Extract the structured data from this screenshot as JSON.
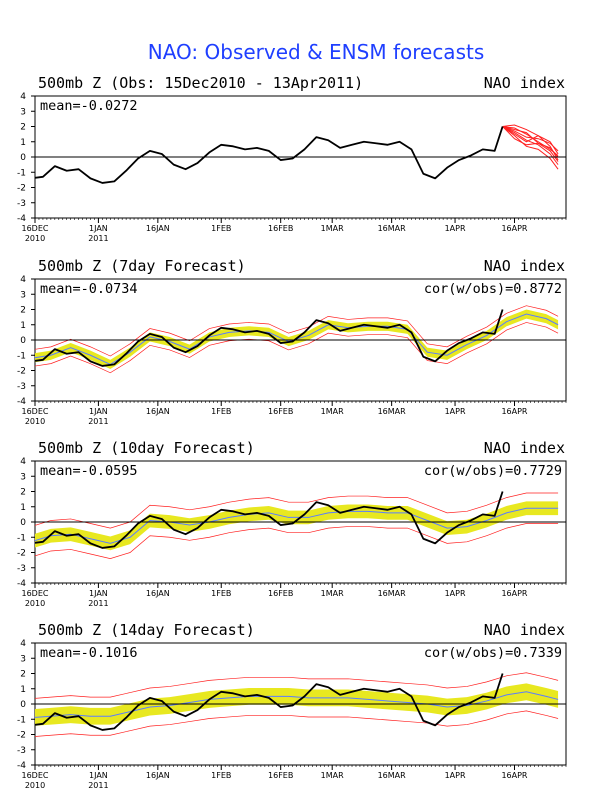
{
  "figure_title": "NAO: Observed & ENSM forecasts",
  "colors": {
    "title": "#1f3fff",
    "observed": "#000000",
    "member": "#ff2020",
    "ens_mean": "#5a7dff",
    "band": "#e8e820"
  },
  "chart_data": [
    {
      "type": "line",
      "title": "500mb Z (Obs: 15Dec2010 - 13Apr2011)",
      "right_title": "NAO index",
      "mean_label": "mean=-0.0272",
      "cor_label": "",
      "xlim": [
        "2010-12-16",
        "2011-04-29"
      ],
      "ylim": [
        -4,
        4
      ],
      "yticks": [
        -4,
        -3,
        -2,
        -1,
        0,
        1,
        2,
        3,
        4
      ],
      "xticks": [
        {
          "date": "2010-12-16",
          "line1": "16DEC",
          "line2": "2010"
        },
        {
          "date": "2011-01-01",
          "line1": "1JAN",
          "line2": "2011"
        },
        {
          "date": "2011-01-16",
          "line1": "16JAN",
          "line2": ""
        },
        {
          "date": "2011-02-01",
          "line1": "1FEB",
          "line2": ""
        },
        {
          "date": "2011-02-16",
          "line1": "16FEB",
          "line2": ""
        },
        {
          "date": "2011-03-01",
          "line1": "1MAR",
          "line2": ""
        },
        {
          "date": "2011-03-16",
          "line1": "16MAR",
          "line2": ""
        },
        {
          "date": "2011-04-01",
          "line1": "1APR",
          "line2": ""
        },
        {
          "date": "2011-04-16",
          "line1": "16APR",
          "line2": ""
        }
      ],
      "show_members": true,
      "show_band": false,
      "show_mean": false
    },
    {
      "type": "line",
      "title": "500mb Z (7day Forecast)",
      "right_title": "NAO index",
      "mean_label": "mean=-0.0734",
      "cor_label": "cor(w/obs)=0.8772",
      "xlim": [
        "2010-12-16",
        "2011-04-29"
      ],
      "ylim": [
        -4,
        4
      ],
      "yticks": [
        -4,
        -3,
        -2,
        -1,
        0,
        1,
        2,
        3,
        4
      ],
      "xticks": [
        {
          "date": "2010-12-16",
          "line1": "16DEC",
          "line2": "2010"
        },
        {
          "date": "2011-01-01",
          "line1": "1JAN",
          "line2": "2011"
        },
        {
          "date": "2011-01-16",
          "line1": "16JAN",
          "line2": ""
        },
        {
          "date": "2011-02-01",
          "line1": "1FEB",
          "line2": ""
        },
        {
          "date": "2011-02-16",
          "line1": "16FEB",
          "line2": ""
        },
        {
          "date": "2011-03-01",
          "line1": "1MAR",
          "line2": ""
        },
        {
          "date": "2011-03-16",
          "line1": "16MAR",
          "line2": ""
        },
        {
          "date": "2011-04-01",
          "line1": "1APR",
          "line2": ""
        },
        {
          "date": "2011-04-16",
          "line1": "16APR",
          "line2": ""
        }
      ],
      "show_members": false,
      "show_band": true,
      "show_mean": true
    },
    {
      "type": "line",
      "title": "500mb Z (10day Forecast)",
      "right_title": "NAO index",
      "mean_label": "mean=-0.0595",
      "cor_label": "cor(w/obs)=0.7729",
      "xlim": [
        "2010-12-16",
        "2011-04-29"
      ],
      "ylim": [
        -4,
        4
      ],
      "yticks": [
        -4,
        -3,
        -2,
        -1,
        0,
        1,
        2,
        3,
        4
      ],
      "xticks": [
        {
          "date": "2010-12-16",
          "line1": "16DEC",
          "line2": "2010"
        },
        {
          "date": "2011-01-01",
          "line1": "1JAN",
          "line2": "2011"
        },
        {
          "date": "2011-01-16",
          "line1": "16JAN",
          "line2": ""
        },
        {
          "date": "2011-02-01",
          "line1": "1FEB",
          "line2": ""
        },
        {
          "date": "2011-02-16",
          "line1": "16FEB",
          "line2": ""
        },
        {
          "date": "2011-03-01",
          "line1": "1MAR",
          "line2": ""
        },
        {
          "date": "2011-03-16",
          "line1": "16MAR",
          "line2": ""
        },
        {
          "date": "2011-04-01",
          "line1": "1APR",
          "line2": ""
        },
        {
          "date": "2011-04-16",
          "line1": "16APR",
          "line2": ""
        }
      ],
      "show_members": false,
      "show_band": true,
      "show_mean": true
    },
    {
      "type": "line",
      "title": "500mb Z (14day Forecast)",
      "right_title": "NAO index",
      "mean_label": "mean=-0.1016",
      "cor_label": "cor(w/obs)=0.7339",
      "xlim": [
        "2010-12-16",
        "2011-04-29"
      ],
      "ylim": [
        -4,
        4
      ],
      "yticks": [
        -4,
        -3,
        -2,
        -1,
        0,
        1,
        2,
        3,
        4
      ],
      "xticks": [
        {
          "date": "2010-12-16",
          "line1": "16DEC",
          "line2": "2010"
        },
        {
          "date": "2011-01-01",
          "line1": "1JAN",
          "line2": "2011"
        },
        {
          "date": "2011-01-16",
          "line1": "16JAN",
          "line2": ""
        },
        {
          "date": "2011-02-01",
          "line1": "1FEB",
          "line2": ""
        },
        {
          "date": "2011-02-16",
          "line1": "16FEB",
          "line2": ""
        },
        {
          "date": "2011-03-01",
          "line1": "1MAR",
          "line2": ""
        },
        {
          "date": "2011-03-16",
          "line1": "16MAR",
          "line2": ""
        },
        {
          "date": "2011-04-01",
          "line1": "1APR",
          "line2": ""
        },
        {
          "date": "2011-04-16",
          "line1": "16APR",
          "line2": ""
        }
      ],
      "show_members": false,
      "show_band": true,
      "show_mean": true
    }
  ],
  "observed": {
    "dates": [
      "2010-12-15",
      "2010-12-18",
      "2010-12-21",
      "2010-12-24",
      "2010-12-27",
      "2010-12-30",
      "2011-01-02",
      "2011-01-05",
      "2011-01-08",
      "2011-01-11",
      "2011-01-14",
      "2011-01-17",
      "2011-01-20",
      "2011-01-23",
      "2011-01-26",
      "2011-01-29",
      "2011-02-01",
      "2011-02-04",
      "2011-02-07",
      "2011-02-10",
      "2011-02-13",
      "2011-02-16",
      "2011-02-19",
      "2011-02-22",
      "2011-02-25",
      "2011-02-28",
      "2011-03-03",
      "2011-03-06",
      "2011-03-09",
      "2011-03-12",
      "2011-03-15",
      "2011-03-18",
      "2011-03-21",
      "2011-03-24",
      "2011-03-27",
      "2011-03-30",
      "2011-04-02",
      "2011-04-05",
      "2011-04-08",
      "2011-04-11",
      "2011-04-13"
    ],
    "values": [
      -1.4,
      -1.3,
      -0.6,
      -0.9,
      -0.8,
      -1.4,
      -1.7,
      -1.6,
      -0.9,
      -0.1,
      0.4,
      0.2,
      -0.5,
      -0.8,
      -0.4,
      0.3,
      0.8,
      0.7,
      0.5,
      0.6,
      0.4,
      -0.2,
      -0.1,
      0.5,
      1.3,
      1.1,
      0.6,
      0.8,
      1.0,
      0.9,
      0.8,
      1.0,
      0.5,
      -1.1,
      -1.4,
      -0.7,
      -0.2,
      0.1,
      0.5,
      0.4,
      2.0
    ]
  },
  "forecast": {
    "dates": [
      "2011-04-13",
      "2011-04-16",
      "2011-04-19",
      "2011-04-22",
      "2011-04-25",
      "2011-04-27"
    ],
    "members": [
      [
        2.0,
        1.6,
        1.1,
        0.8,
        0.2,
        -0.5
      ],
      [
        2.0,
        1.9,
        1.5,
        1.0,
        0.5,
        0.1
      ],
      [
        2.0,
        1.2,
        0.8,
        0.9,
        0.6,
        0.0
      ],
      [
        2.0,
        1.7,
        1.3,
        1.2,
        0.9,
        0.4
      ],
      [
        2.0,
        1.4,
        0.7,
        0.5,
        -0.1,
        -0.8
      ],
      [
        2.0,
        2.1,
        1.8,
        1.4,
        1.0,
        0.2
      ],
      [
        2.0,
        1.5,
        1.0,
        1.4,
        0.7,
        -0.2
      ],
      [
        2.0,
        1.8,
        1.6,
        0.9,
        0.4,
        -0.3
      ]
    ]
  },
  "hindcast": {
    "dates": [
      "2010-12-15",
      "2010-12-20",
      "2010-12-25",
      "2010-12-30",
      "2011-01-04",
      "2011-01-09",
      "2011-01-14",
      "2011-01-19",
      "2011-01-24",
      "2011-01-29",
      "2011-02-03",
      "2011-02-08",
      "2011-02-13",
      "2011-02-18",
      "2011-02-23",
      "2011-02-28",
      "2011-03-05",
      "2011-03-10",
      "2011-03-15",
      "2011-03-20",
      "2011-03-25",
      "2011-03-30",
      "2011-04-04",
      "2011-04-09",
      "2011-04-14",
      "2011-04-19",
      "2011-04-24",
      "2011-04-27"
    ],
    "mean7": [
      -1.2,
      -1.0,
      -0.5,
      -1.0,
      -1.6,
      -0.8,
      0.2,
      -0.1,
      -0.6,
      0.2,
      0.5,
      0.6,
      0.5,
      -0.1,
      0.3,
      1.0,
      0.8,
      0.9,
      0.9,
      0.7,
      -0.8,
      -1.0,
      -0.3,
      0.3,
      1.2,
      1.7,
      1.4,
      1.0
    ],
    "mean10": [
      -1.3,
      -0.9,
      -0.8,
      -1.1,
      -1.4,
      -1.0,
      0.1,
      0.0,
      -0.2,
      0.0,
      0.3,
      0.5,
      0.6,
      0.3,
      0.3,
      0.6,
      0.7,
      0.7,
      0.6,
      0.6,
      0.1,
      -0.4,
      -0.3,
      0.1,
      0.6,
      0.9,
      0.9,
      0.9
    ],
    "mean14": [
      -0.9,
      -0.8,
      -0.7,
      -0.8,
      -0.8,
      -0.5,
      -0.2,
      -0.1,
      0.1,
      0.3,
      0.4,
      0.5,
      0.5,
      0.5,
      0.4,
      0.4,
      0.4,
      0.3,
      0.2,
      0.1,
      0.0,
      -0.2,
      -0.1,
      0.2,
      0.6,
      0.8,
      0.5,
      0.3
    ],
    "band_halfwidth": [
      0.3,
      0.45,
      0.55
    ]
  }
}
